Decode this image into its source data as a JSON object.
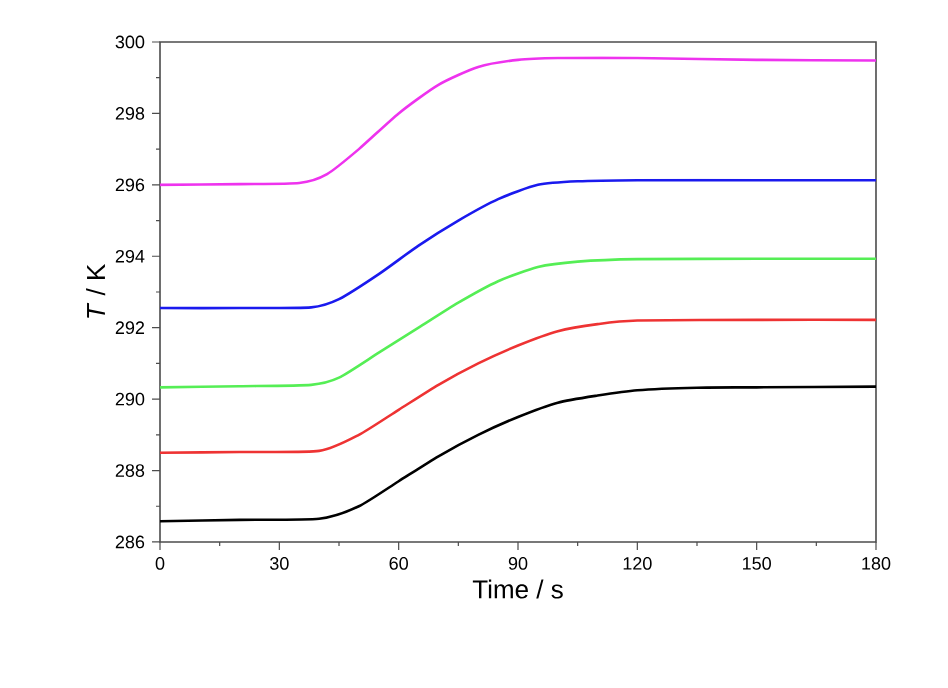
{
  "chart_data": {
    "type": "line",
    "xlabel": "Time / s",
    "ylabel": "*T* / K",
    "xlim": [
      0,
      180
    ],
    "xticks": [
      0,
      30,
      60,
      90,
      120,
      150,
      180
    ],
    "ylim": [
      286,
      300
    ],
    "yticks": [
      286,
      288,
      290,
      292,
      294,
      296,
      298,
      300
    ],
    "grid": false,
    "marker": "none",
    "line_style": "solid",
    "series": [
      {
        "color": "#000000",
        "x": [
          0,
          20,
          40,
          50,
          60,
          70,
          80,
          90,
          100,
          110,
          120,
          135,
          150,
          180
        ],
        "values": [
          286.58,
          286.62,
          286.65,
          287.0,
          287.7,
          288.4,
          289.0,
          289.5,
          289.9,
          290.1,
          290.25,
          290.32,
          290.33,
          290.35
        ]
      },
      {
        "color": "#ee3333",
        "x": [
          0,
          20,
          40,
          50,
          60,
          70,
          80,
          90,
          100,
          110,
          120,
          150,
          180
        ],
        "values": [
          288.5,
          288.52,
          288.55,
          289.0,
          289.7,
          290.4,
          291.0,
          291.5,
          291.9,
          292.1,
          292.2,
          292.22,
          292.22
        ]
      },
      {
        "color": "#55ee55",
        "x": [
          0,
          20,
          38,
          45,
          55,
          65,
          75,
          85,
          95,
          105,
          120,
          150,
          180
        ],
        "values": [
          290.33,
          290.36,
          290.4,
          290.6,
          291.3,
          292.0,
          292.7,
          293.3,
          293.7,
          293.85,
          293.92,
          293.93,
          293.93
        ]
      },
      {
        "color": "#1a1aee",
        "x": [
          0,
          20,
          38,
          45,
          55,
          65,
          75,
          85,
          95,
          105,
          120,
          150,
          180
        ],
        "values": [
          292.55,
          292.55,
          292.57,
          292.8,
          293.5,
          294.3,
          295.0,
          295.6,
          296.0,
          296.1,
          296.13,
          296.13,
          296.13
        ]
      },
      {
        "color": "#ee33ee",
        "x": [
          0,
          20,
          35,
          42,
          50,
          60,
          70,
          80,
          90,
          100,
          120,
          150,
          180
        ],
        "values": [
          296.0,
          296.02,
          296.05,
          296.3,
          297.0,
          298.0,
          298.8,
          299.3,
          299.5,
          299.55,
          299.55,
          299.5,
          299.48
        ]
      }
    ]
  }
}
